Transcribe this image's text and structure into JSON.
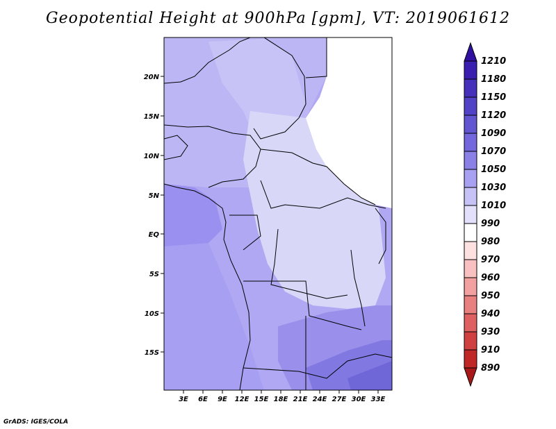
{
  "title": "Geopotential Height at 900hPa [gpm], VT: 2019061612",
  "credit": "GrADS: IGES/COLA",
  "map": {
    "lat_labels": [
      "20N",
      "15N",
      "10N",
      "5N",
      "EQ",
      "5S",
      "10S",
      "15S"
    ],
    "lon_labels": [
      "3E",
      "6E",
      "9E",
      "12E",
      "15E",
      "18E",
      "21E",
      "24E",
      "27E",
      "30E",
      "33E"
    ]
  },
  "colorbar": {
    "levels": [
      "1210",
      "1180",
      "1150",
      "1120",
      "1090",
      "1070",
      "1050",
      "1030",
      "1010",
      "990",
      "980",
      "970",
      "960",
      "950",
      "940",
      "930",
      "910",
      "890"
    ],
    "colors": [
      "#3010a0",
      "#3a1eb0",
      "#4530bc",
      "#5242c6",
      "#6155d0",
      "#7466dc",
      "#8a80e6",
      "#a8a0f0",
      "#c6c2f5",
      "#e2e0fa",
      "#ffffff",
      "#fde0e0",
      "#f8c0c0",
      "#f2a0a0",
      "#e88080",
      "#de6060",
      "#d04040",
      "#c02828",
      "#a81818"
    ]
  }
}
